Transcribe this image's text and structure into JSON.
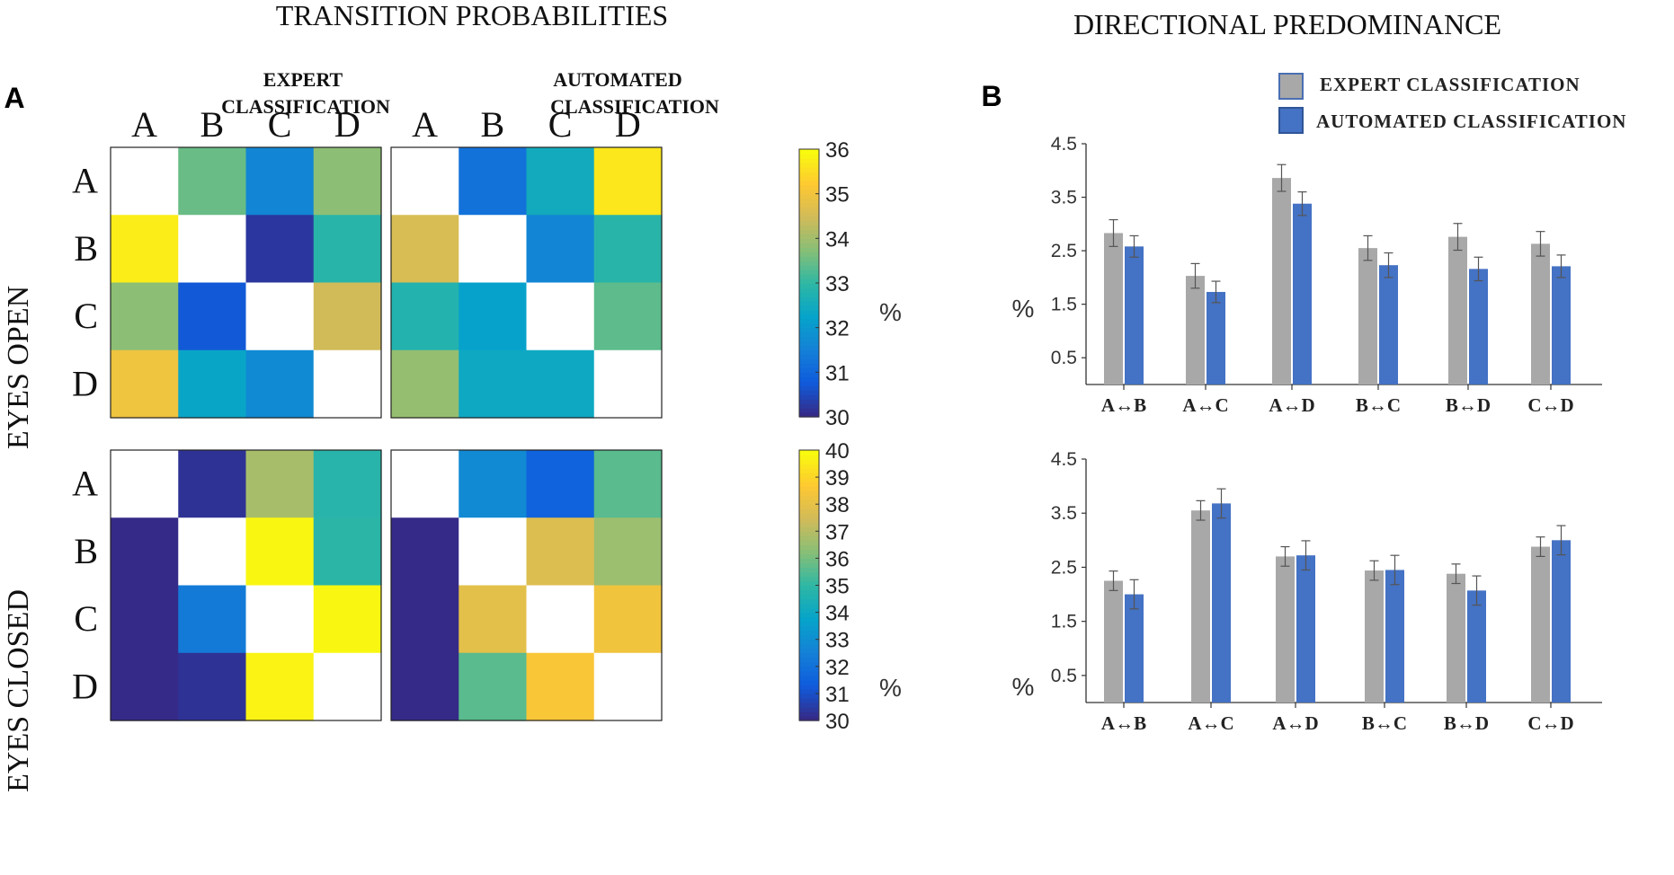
{
  "headers": {
    "transition_title": "TRANSITION PROBABILITIES",
    "directional_title": "DIRECTIONAL PREDOMINANCE",
    "panel_a": "A",
    "panel_b": "B",
    "expert_label_line1": "EXPERT",
    "expert_label_line2": "CLASSIFICATION",
    "automated_label_line1": "AUTOMATED",
    "automated_label_line2": "CLASSIFICATION",
    "eyes_open": "EYES OPEN",
    "eyes_closed": "EYES CLOSED",
    "unit": "%"
  },
  "legend": {
    "expert": "EXPERT  CLASSIFICATION",
    "automated": "AUTOMATED  CLASSIFICATION"
  },
  "colors": {
    "expert_bar": "#a8a8a8",
    "automated_bar": "#4472c4",
    "colormap": [
      "#352a87",
      "#0f5cdd",
      "#1481d6",
      "#06a4ca",
      "#2eb7a4",
      "#87bf77",
      "#d1bb59",
      "#fec832",
      "#f9fb0e"
    ]
  },
  "chart_data": [
    {
      "type": "heatmap",
      "title": "EXPERT CLASSIFICATION",
      "condition": "EYES OPEN",
      "rows": [
        "A",
        "B",
        "C",
        "D"
      ],
      "cols": [
        "A",
        "B",
        "C",
        "D"
      ],
      "values": [
        [
          null,
          33.5,
          31.6,
          33.8
        ],
        [
          35.8,
          null,
          30.2,
          32.9
        ],
        [
          33.8,
          30.7,
          null,
          34.5
        ],
        [
          35.0,
          32.3,
          31.7,
          null
        ]
      ],
      "colorbar": {
        "min": 30,
        "max": 36,
        "ticks": [
          30,
          31,
          32,
          33,
          34,
          35,
          36
        ],
        "label": "%"
      }
    },
    {
      "type": "heatmap",
      "title": "AUTOMATED CLASSIFICATION",
      "condition": "EYES OPEN",
      "rows": [
        "A",
        "B",
        "C",
        "D"
      ],
      "cols": [
        "A",
        "B",
        "C",
        "D"
      ],
      "values": [
        [
          null,
          31.2,
          32.5,
          35.7
        ],
        [
          34.6,
          null,
          31.6,
          32.9
        ],
        [
          32.8,
          32.2,
          null,
          33.4
        ],
        [
          33.9,
          32.4,
          32.4,
          null
        ]
      ],
      "colorbar": {
        "min": 30,
        "max": 36,
        "ticks": [
          30,
          31,
          32,
          33,
          34,
          35,
          36
        ],
        "label": "%"
      }
    },
    {
      "type": "heatmap",
      "title": "EXPERT CLASSIFICATION",
      "condition": "EYES CLOSED",
      "rows": [
        "A",
        "B",
        "C",
        "D"
      ],
      "cols": [
        "A",
        "B",
        "C",
        "D"
      ],
      "values": [
        [
          null,
          30.2,
          36.8,
          34.8
        ],
        [
          30.0,
          null,
          39.9,
          34.9
        ],
        [
          30.0,
          32.3,
          null,
          39.9
        ],
        [
          30.0,
          30.2,
          39.8,
          null
        ]
      ],
      "colorbar": {
        "min": 30,
        "max": 40,
        "ticks": [
          30,
          31,
          32,
          33,
          34,
          35,
          36,
          37,
          38,
          39,
          40
        ],
        "label": "%"
      }
    },
    {
      "type": "heatmap",
      "title": "AUTOMATED CLASSIFICATION",
      "condition": "EYES CLOSED",
      "rows": [
        "A",
        "B",
        "C",
        "D"
      ],
      "cols": [
        "A",
        "B",
        "C",
        "D"
      ],
      "values": [
        [
          null,
          32.8,
          31.5,
          35.6
        ],
        [
          30.0,
          null,
          37.8,
          36.6
        ],
        [
          30.0,
          38.0,
          null,
          38.4
        ],
        [
          30.0,
          35.6,
          38.6,
          null
        ]
      ],
      "colorbar": {
        "min": 30,
        "max": 40,
        "ticks": [
          30,
          31,
          32,
          33,
          34,
          35,
          36,
          37,
          38,
          39,
          40
        ],
        "label": "%"
      }
    },
    {
      "type": "bar",
      "title": "DIRECTIONAL PREDOMINANCE",
      "condition": "EYES OPEN",
      "ylabel": "%",
      "ylim": [
        0,
        4.5
      ],
      "yticks": [
        0.5,
        1.5,
        2.5,
        3.5,
        4.5
      ],
      "categories": [
        "A↔B",
        "A↔C",
        "A↔D",
        "B↔C",
        "B↔D",
        "C↔D"
      ],
      "series": [
        {
          "name": "EXPERT CLASSIFICATION",
          "values": [
            2.83,
            2.03,
            3.86,
            2.55,
            2.76,
            2.63
          ],
          "errors": [
            0.25,
            0.23,
            0.25,
            0.23,
            0.25,
            0.23
          ]
        },
        {
          "name": "AUTOMATED CLASSIFICATION",
          "values": [
            2.58,
            1.73,
            3.38,
            2.23,
            2.16,
            2.21
          ],
          "errors": [
            0.2,
            0.2,
            0.22,
            0.23,
            0.22,
            0.21
          ]
        }
      ]
    },
    {
      "type": "bar",
      "title": "DIRECTIONAL PREDOMINANCE",
      "condition": "EYES CLOSED",
      "ylabel": "%",
      "ylim": [
        0,
        4.5
      ],
      "yticks": [
        0.5,
        1.5,
        2.5,
        3.5,
        4.5
      ],
      "categories": [
        "A↔B",
        "A↔C",
        "A↔D",
        "B↔C",
        "B↔D",
        "C↔D"
      ],
      "series": [
        {
          "name": "EXPERT CLASSIFICATION",
          "values": [
            2.25,
            3.55,
            2.7,
            2.44,
            2.38,
            2.88
          ],
          "errors": [
            0.18,
            0.18,
            0.18,
            0.18,
            0.18,
            0.18
          ]
        },
        {
          "name": "AUTOMATED CLASSIFICATION",
          "values": [
            2.0,
            3.68,
            2.72,
            2.45,
            2.07,
            3.0
          ],
          "errors": [
            0.27,
            0.27,
            0.27,
            0.27,
            0.27,
            0.27
          ]
        }
      ]
    }
  ]
}
